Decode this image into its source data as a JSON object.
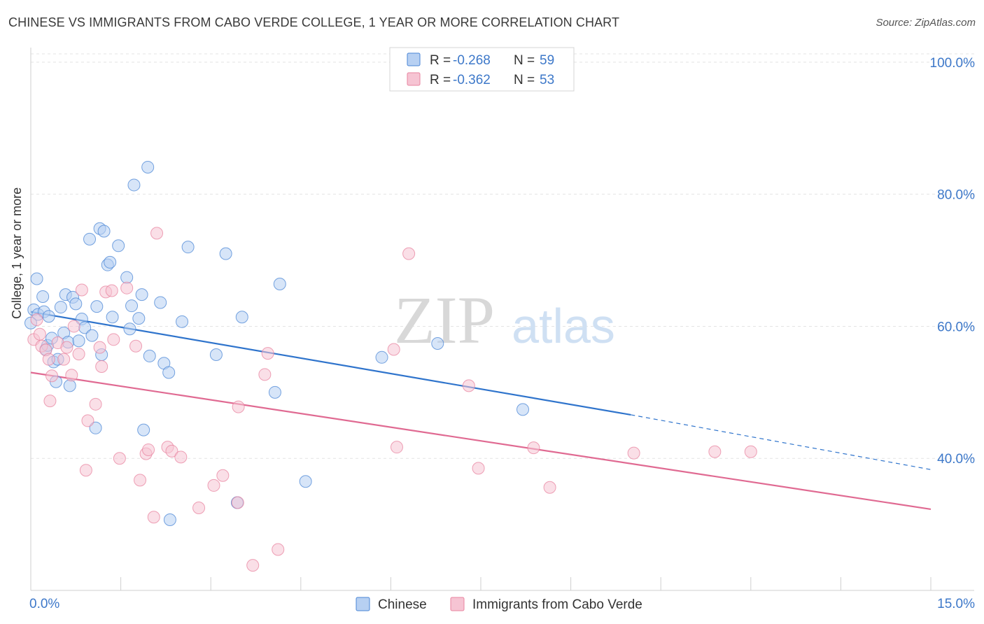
{
  "header": {
    "title": "CHINESE VS IMMIGRANTS FROM CABO VERDE COLLEGE, 1 YEAR OR MORE CORRELATION CHART",
    "source": "Source: ZipAtlas.com"
  },
  "watermark": {
    "zip": "ZIP",
    "atlas": "atlas"
  },
  "colors": {
    "blue": "#4a86d6",
    "blue_fill": "#b7d0f2",
    "blue_line": "#2f74cc",
    "pink": "#e8839f",
    "pink_fill": "#f6c4d3",
    "pink_line": "#e06a92",
    "tick_text": "#3d78c9",
    "grid": "#e3e3e3"
  },
  "legend": {
    "rows": [
      {
        "r_label": "R = ",
        "r_value": "-0.268",
        "n_label": "N = ",
        "n_value": "59"
      },
      {
        "r_label": "R = ",
        "r_value": "-0.362",
        "n_label": "N = ",
        "n_value": "53"
      }
    ]
  },
  "chart_data": {
    "type": "scatter",
    "title": "CHINESE VS IMMIGRANTS FROM CABO VERDE COLLEGE, 1 YEAR OR MORE CORRELATION CHART",
    "xlabel": "",
    "ylabel": "College, 1 year or more",
    "xlim": [
      0,
      15
    ],
    "ylim": [
      20,
      102
    ],
    "x_tick_labels": [
      "0.0%",
      "15.0%"
    ],
    "y_ticks": [
      40,
      60,
      80,
      100
    ],
    "y_tick_labels": [
      "40.0%",
      "60.0%",
      "80.0%",
      "100.0%"
    ],
    "legend_position": "top-center",
    "series": [
      {
        "name": "Chinese",
        "color": "blue",
        "points": [
          [
            0.05,
            62.5
          ],
          [
            0.1,
            67.2
          ],
          [
            0.12,
            61.8
          ],
          [
            0.2,
            64.5
          ],
          [
            0.22,
            62.2
          ],
          [
            0.25,
            56.5
          ],
          [
            0.28,
            57.1
          ],
          [
            0.3,
            61.5
          ],
          [
            0.35,
            58.2
          ],
          [
            0.38,
            54.6
          ],
          [
            0.42,
            51.6
          ],
          [
            0.45,
            55.0
          ],
          [
            0.5,
            62.9
          ],
          [
            0.55,
            59.0
          ],
          [
            0.58,
            64.8
          ],
          [
            0.62,
            57.6
          ],
          [
            0.65,
            51.0
          ],
          [
            0.7,
            64.4
          ],
          [
            0.75,
            63.4
          ],
          [
            0.8,
            57.8
          ],
          [
            0.85,
            61.1
          ],
          [
            0.9,
            59.8
          ],
          [
            0.98,
            73.2
          ],
          [
            1.02,
            58.6
          ],
          [
            1.08,
            44.6
          ],
          [
            1.1,
            63.0
          ],
          [
            1.15,
            74.8
          ],
          [
            1.18,
            55.7
          ],
          [
            1.22,
            74.4
          ],
          [
            1.28,
            69.3
          ],
          [
            1.32,
            69.7
          ],
          [
            1.36,
            61.4
          ],
          [
            1.46,
            72.2
          ],
          [
            1.6,
            67.4
          ],
          [
            1.65,
            59.6
          ],
          [
            1.68,
            63.1
          ],
          [
            1.72,
            81.4
          ],
          [
            1.8,
            61.2
          ],
          [
            1.85,
            64.8
          ],
          [
            1.88,
            44.3
          ],
          [
            1.95,
            84.1
          ],
          [
            1.98,
            55.5
          ],
          [
            2.16,
            63.6
          ],
          [
            2.22,
            54.4
          ],
          [
            2.3,
            53.0
          ],
          [
            2.32,
            30.7
          ],
          [
            2.52,
            60.7
          ],
          [
            2.62,
            72.0
          ],
          [
            3.09,
            55.7
          ],
          [
            3.25,
            71.0
          ],
          [
            3.44,
            33.3
          ],
          [
            3.52,
            61.4
          ],
          [
            4.07,
            50.0
          ],
          [
            4.15,
            66.4
          ],
          [
            4.58,
            36.5
          ],
          [
            5.85,
            55.3
          ],
          [
            6.78,
            57.4
          ],
          [
            8.2,
            47.4
          ],
          [
            0.0,
            60.5
          ]
        ]
      },
      {
        "name": "Immigrants from Cabo Verde",
        "color": "pink",
        "points": [
          [
            0.05,
            58.0
          ],
          [
            0.1,
            61.0
          ],
          [
            0.15,
            58.8
          ],
          [
            0.18,
            57.0
          ],
          [
            0.25,
            56.4
          ],
          [
            0.3,
            55.0
          ],
          [
            0.32,
            48.7
          ],
          [
            0.35,
            52.5
          ],
          [
            0.45,
            57.5
          ],
          [
            0.55,
            55.0
          ],
          [
            0.6,
            56.8
          ],
          [
            0.68,
            52.6
          ],
          [
            0.72,
            60.0
          ],
          [
            0.8,
            55.8
          ],
          [
            0.85,
            65.5
          ],
          [
            0.92,
            38.2
          ],
          [
            0.95,
            45.7
          ],
          [
            1.08,
            48.2
          ],
          [
            1.15,
            56.8
          ],
          [
            1.18,
            53.9
          ],
          [
            1.25,
            65.2
          ],
          [
            1.35,
            65.4
          ],
          [
            1.38,
            58.0
          ],
          [
            1.48,
            40.0
          ],
          [
            1.6,
            65.8
          ],
          [
            1.75,
            57.0
          ],
          [
            1.82,
            36.7
          ],
          [
            1.92,
            40.7
          ],
          [
            1.96,
            41.3
          ],
          [
            2.05,
            31.1
          ],
          [
            2.1,
            74.1
          ],
          [
            2.28,
            41.7
          ],
          [
            2.35,
            41.1
          ],
          [
            2.5,
            40.2
          ],
          [
            2.8,
            32.5
          ],
          [
            3.05,
            35.9
          ],
          [
            3.2,
            37.4
          ],
          [
            3.45,
            33.3
          ],
          [
            3.46,
            47.8
          ],
          [
            3.7,
            23.8
          ],
          [
            3.9,
            52.7
          ],
          [
            3.95,
            55.9
          ],
          [
            4.12,
            26.2
          ],
          [
            6.05,
            56.5
          ],
          [
            6.1,
            41.7
          ],
          [
            6.3,
            71.0
          ],
          [
            7.3,
            51.0
          ],
          [
            7.46,
            38.5
          ],
          [
            8.38,
            41.6
          ],
          [
            8.65,
            35.6
          ],
          [
            10.05,
            40.8
          ],
          [
            11.4,
            41.0
          ],
          [
            12.0,
            41.0
          ]
        ]
      }
    ],
    "trendlines": [
      {
        "series": "Chinese",
        "x_start": 0,
        "y_start": 62.2,
        "x_solid_end": 10.0,
        "y_solid_end": 46.6,
        "x_end": 15,
        "y_end": 38.3,
        "extension": "dashed"
      },
      {
        "series": "Immigrants from Cabo Verde",
        "x_start": 0,
        "y_start": 53.0,
        "x_end": 15,
        "y_end": 32.3
      }
    ]
  }
}
